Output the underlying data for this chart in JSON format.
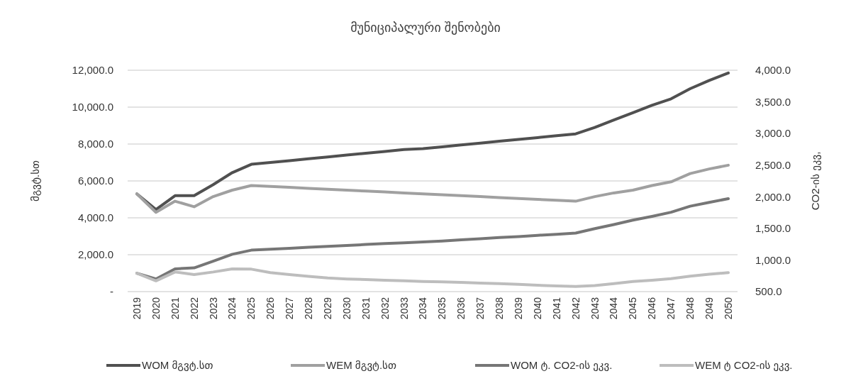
{
  "chart_data": {
    "type": "line",
    "title": "მუნიციპალური შენობები",
    "ylabel": "მგვტ.სთ",
    "y2label": "CO2-ის ეკვ,",
    "categories": [
      "2019",
      "2020",
      "2021",
      "2022",
      "2023",
      "2024",
      "2025",
      "2026",
      "2027",
      "2028",
      "2029",
      "2030",
      "2031",
      "2032",
      "2033",
      "2034",
      "2035",
      "2036",
      "2037",
      "2038",
      "2039",
      "2040",
      "2041",
      "2042",
      "2043",
      "2044",
      "2045",
      "2046",
      "2047",
      "2048",
      "2049",
      "2050"
    ],
    "series": [
      {
        "name": "WOM მგვტ.სთ",
        "color": "#505050",
        "values": [
          5300,
          4450,
          5200,
          5200,
          5800,
          6450,
          6900,
          7000,
          7100,
          7200,
          7300,
          7400,
          7500,
          7600,
          7700,
          7750,
          7850,
          7950,
          8050,
          8150,
          8250,
          8350,
          8450,
          8550,
          8900,
          9300,
          9700,
          10100,
          10450,
          11000,
          11450,
          11850
        ]
      },
      {
        "name": "WEM მგვტ.სთ",
        "color": "#a0a0a0",
        "values": [
          5300,
          4300,
          4900,
          4600,
          5150,
          5500,
          5750,
          5700,
          5650,
          5600,
          5550,
          5500,
          5450,
          5400,
          5350,
          5300,
          5250,
          5200,
          5150,
          5100,
          5050,
          5000,
          4950,
          4900,
          5150,
          5350,
          5500,
          5750,
          5950,
          6400,
          6650,
          6850
        ]
      },
      {
        "name": "WOM ტ. CO2-ის ეკვ.",
        "color": "#767676",
        "axis": "y2",
        "values": [
          790,
          700,
          860,
          875,
          980,
          1090,
          1155,
          1170,
          1185,
          1200,
          1215,
          1230,
          1245,
          1260,
          1270,
          1285,
          1300,
          1320,
          1335,
          1355,
          1370,
          1390,
          1405,
          1425,
          1495,
          1560,
          1630,
          1690,
          1755,
          1850,
          1910,
          1970
        ]
      },
      {
        "name": "WEM ტ CO2-ის ეკვ.",
        "color": "#bdbdbd",
        "axis": "y2",
        "values": [
          790,
          670,
          810,
          770,
          810,
          860,
          855,
          800,
          770,
          740,
          715,
          700,
          690,
          680,
          670,
          660,
          655,
          645,
          635,
          625,
          615,
          600,
          590,
          580,
          595,
          625,
          660,
          680,
          705,
          745,
          775,
          800
        ]
      }
    ],
    "ylim": [
      0,
      12000
    ],
    "yticks": [
      {
        "value": 0,
        "label": "-"
      },
      {
        "value": 2000,
        "label": "2,000.0"
      },
      {
        "value": 4000,
        "label": "4,000.0"
      },
      {
        "value": 6000,
        "label": "6,000.0"
      },
      {
        "value": 8000,
        "label": "8,000.0"
      },
      {
        "value": 10000,
        "label": "10,000.0"
      },
      {
        "value": 12000,
        "label": "12,000.0"
      }
    ],
    "y2lim": [
      500,
      4000
    ],
    "y2ticks": [
      {
        "value": 500,
        "label": "500.0"
      },
      {
        "value": 1000,
        "label": "1,000.0"
      },
      {
        "value": 1500,
        "label": "1,500.0"
      },
      {
        "value": 2000,
        "label": "2,000.0"
      },
      {
        "value": 2500,
        "label": "2,500.0"
      },
      {
        "value": 3000,
        "label": "3,000.0"
      },
      {
        "value": 3500,
        "label": "3,500.0"
      },
      {
        "value": 4000,
        "label": "4,000.0"
      }
    ],
    "grid": "y",
    "legend": "bottom",
    "marker": "none",
    "line_style": "solid"
  }
}
